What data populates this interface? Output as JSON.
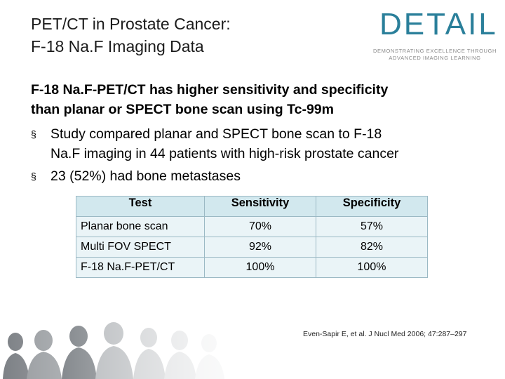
{
  "slide": {
    "title_line1": "PET/CT in Prostate Cancer:",
    "title_line2": "F-18 Na.F Imaging Data",
    "logo": {
      "word": "DETAIL",
      "tagline": "DEMONSTRATING EXCELLENCE THROUGH ADVANCED IMAGING LEARNING",
      "color": "#2a7f9a"
    },
    "lead_line1": "F-18 Na.F-PET/CT has higher sensitivity and specificity",
    "lead_line2": "than planar or SPECT bone scan using Tc-99m",
    "bullet_symbol": "§",
    "bullets": [
      {
        "line1": "Study compared planar and SPECT bone scan to F-18",
        "line2": "Na.F imaging in 44 patients with high-risk prostate cancer"
      },
      {
        "line1": "23 (52%) had bone metastases"
      }
    ],
    "table": {
      "headers": [
        "Test",
        "Sensitivity",
        "Specificity"
      ],
      "rows": [
        [
          "Planar bone scan",
          "70%",
          "57%"
        ],
        [
          "Multi FOV SPECT",
          "92%",
          "82%"
        ],
        [
          "F-18 Na.F-PET/CT",
          "100%",
          "100%"
        ]
      ]
    },
    "citation": "Even-Sapir E, et al. J Nucl Med 2006; 47:287–297",
    "photo_icon": "medical-team-photo-icon"
  }
}
